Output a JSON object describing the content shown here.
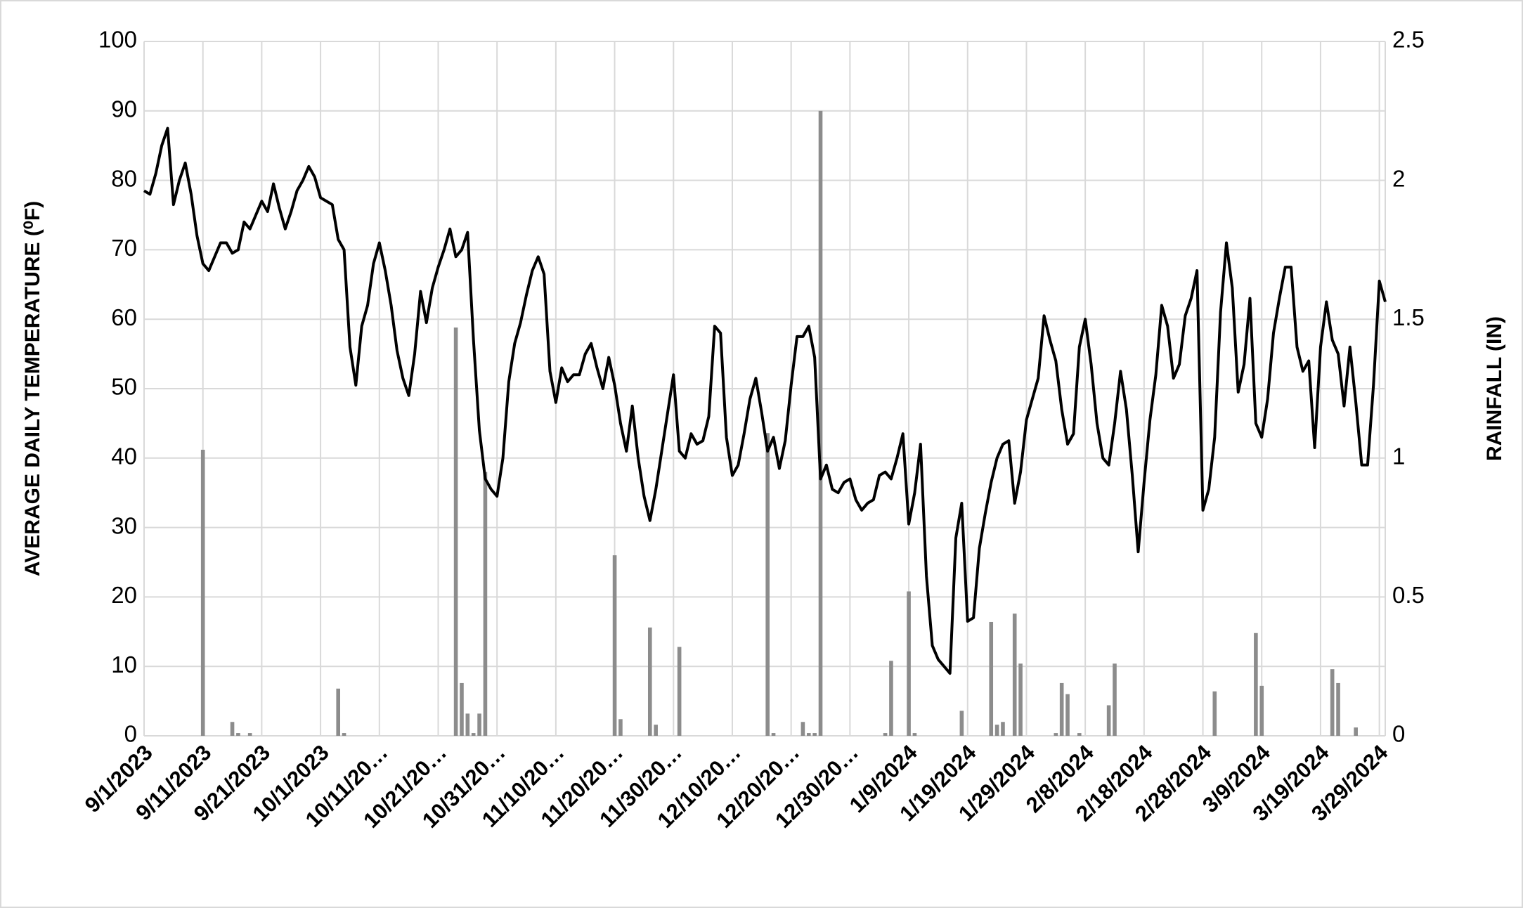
{
  "chart_data": {
    "type": "combo",
    "ylabel": "AVERAGE DAILY TEMPERATURE (⁰F)",
    "y2label": "RAINFALL (IN)",
    "ylim": [
      0,
      100
    ],
    "yticks": [
      0,
      10,
      20,
      30,
      40,
      50,
      60,
      70,
      80,
      90,
      100
    ],
    "y2lim": [
      0,
      2.5
    ],
    "y2ticks": [
      0,
      0.5,
      1,
      1.5,
      2,
      2.5
    ],
    "grid": true,
    "categories": [
      "9/1/2023",
      null,
      null,
      null,
      null,
      null,
      null,
      null,
      null,
      null,
      "9/11/2023",
      null,
      null,
      null,
      null,
      null,
      null,
      null,
      null,
      null,
      "9/21/2023",
      null,
      null,
      null,
      null,
      null,
      null,
      null,
      null,
      null,
      "10/1/2023",
      null,
      null,
      null,
      null,
      null,
      null,
      null,
      null,
      null,
      "10/11/20…",
      null,
      null,
      null,
      null,
      null,
      null,
      null,
      null,
      null,
      "10/21/20…",
      null,
      null,
      null,
      null,
      null,
      null,
      null,
      null,
      null,
      "10/31/20…",
      null,
      null,
      null,
      null,
      null,
      null,
      null,
      null,
      null,
      "11/10/20…",
      null,
      null,
      null,
      null,
      null,
      null,
      null,
      null,
      null,
      "11/20/20…",
      null,
      null,
      null,
      null,
      null,
      null,
      null,
      null,
      null,
      "11/30/20…",
      null,
      null,
      null,
      null,
      null,
      null,
      null,
      null,
      null,
      "12/10/20…",
      null,
      null,
      null,
      null,
      null,
      null,
      null,
      null,
      null,
      "12/20/20…",
      null,
      null,
      null,
      null,
      null,
      null,
      null,
      null,
      null,
      "12/30/20…",
      null,
      null,
      null,
      null,
      null,
      null,
      null,
      null,
      null,
      "1/9/2024",
      null,
      null,
      null,
      null,
      null,
      null,
      null,
      null,
      null,
      "1/19/2024",
      null,
      null,
      null,
      null,
      null,
      null,
      null,
      null,
      null,
      "1/29/2024",
      null,
      null,
      null,
      null,
      null,
      null,
      null,
      null,
      null,
      "2/8/2024",
      null,
      null,
      null,
      null,
      null,
      null,
      null,
      null,
      null,
      "2/18/2024",
      null,
      null,
      null,
      null,
      null,
      null,
      null,
      null,
      null,
      "2/28/2024",
      null,
      null,
      null,
      null,
      null,
      null,
      null,
      null,
      null,
      "3/9/2024",
      null,
      null,
      null,
      null,
      null,
      null,
      null,
      null,
      null,
      "3/19/2024",
      null,
      null,
      null,
      null,
      null,
      null,
      null,
      null,
      null,
      "3/29/2024",
      null
    ],
    "series": [
      {
        "type": "bar",
        "axis": "y2",
        "color": "#8c8c8c",
        "values": [
          0,
          0,
          0,
          0,
          0,
          0,
          0,
          0,
          0,
          0,
          1.03,
          0,
          0,
          0,
          0,
          0.05,
          0.01,
          0,
          0.01,
          0,
          0,
          0,
          0,
          0,
          0,
          0,
          0,
          0,
          0,
          0,
          0,
          0,
          0,
          0.17,
          0.01,
          0,
          0,
          0,
          0,
          0,
          0,
          0,
          0,
          0,
          0,
          0,
          0,
          0,
          0,
          0,
          0,
          0,
          0,
          1.47,
          0.19,
          0.08,
          0.01,
          0.08,
          0.95,
          0,
          0,
          0,
          0,
          0,
          0,
          0,
          0,
          0,
          0,
          0,
          0,
          0,
          0,
          0,
          0,
          0,
          0,
          0,
          0,
          0,
          0.65,
          0.06,
          0,
          0,
          0,
          0,
          0.39,
          0.04,
          0,
          0,
          0,
          0.32,
          0,
          0,
          0,
          0,
          0,
          0,
          0,
          0,
          0,
          0,
          0,
          0,
          0,
          0,
          1.09,
          0.01,
          0,
          0,
          0,
          0,
          0.05,
          0.01,
          0.01,
          2.25,
          0,
          0,
          0,
          0,
          0,
          0,
          0,
          0,
          0,
          0,
          0.01,
          0.27,
          0,
          0,
          0.52,
          0.01,
          0,
          0,
          0,
          0,
          0,
          0,
          0,
          0.09,
          0,
          0,
          0,
          0,
          0.41,
          0.04,
          0.05,
          0,
          0.44,
          0.26,
          0,
          0,
          0,
          0,
          0,
          0.01,
          0.19,
          0.15,
          0,
          0.01,
          0,
          0,
          0,
          0,
          0.11,
          0.26,
          0,
          0,
          0,
          0,
          0,
          0,
          0,
          0,
          0,
          0,
          0,
          0,
          0,
          0,
          0,
          0,
          0.16,
          0,
          0,
          0,
          0,
          0,
          0,
          0.37,
          0.18,
          0,
          0,
          0,
          0,
          0,
          0,
          0,
          0,
          0,
          0,
          0,
          0.24,
          0.19,
          0,
          0,
          0.03,
          0,
          0,
          0,
          0,
          0
        ]
      },
      {
        "type": "line",
        "color": "#000000",
        "values": [
          78.5,
          78,
          81,
          85,
          87.5,
          76.5,
          80,
          82.5,
          78,
          72,
          68,
          67,
          69,
          71,
          71,
          69.5,
          70,
          74,
          73,
          75,
          77,
          75.5,
          79.5,
          76,
          73,
          75.5,
          78.5,
          80,
          82,
          80.5,
          77.5,
          77,
          76.5,
          71.5,
          70,
          56,
          50.5,
          59,
          62,
          68,
          71,
          67,
          62,
          55.5,
          51.5,
          49,
          55,
          64,
          59.5,
          64.5,
          67.5,
          70,
          73,
          69,
          70,
          72.5,
          57,
          44,
          37,
          35.5,
          34.5,
          40,
          51,
          56.5,
          59.5,
          63.5,
          67,
          69,
          66.5,
          52.5,
          48,
          53,
          51,
          52,
          52,
          55,
          56.5,
          53,
          50,
          54.5,
          50.5,
          45,
          41,
          47.5,
          40,
          34.5,
          31,
          35.5,
          41,
          46.5,
          52,
          41,
          40,
          43.5,
          42,
          42.5,
          46,
          59,
          58,
          43,
          37.5,
          39,
          43.5,
          48.5,
          51.5,
          46.5,
          41,
          43,
          38.5,
          42.5,
          50.5,
          57.5,
          57.5,
          59,
          54.5,
          37,
          39,
          35.5,
          35,
          36.5,
          37,
          34,
          32.5,
          33.5,
          34,
          37.5,
          38,
          37,
          40,
          43.5,
          30.5,
          35,
          42,
          23,
          13,
          11,
          10,
          9,
          28.5,
          33.5,
          16.5,
          17,
          27,
          32,
          36.5,
          40,
          42,
          42.5,
          33.5,
          38,
          45.5,
          48.5,
          51.5,
          60.5,
          57,
          54,
          47,
          42,
          43.5,
          56,
          60,
          53.5,
          45,
          40,
          39,
          45,
          52.5,
          47,
          37.5,
          26.5,
          36.5,
          45.5,
          52,
          62,
          59,
          51.5,
          53.5,
          60.5,
          63,
          67,
          32.5,
          35.5,
          43,
          61,
          71,
          64.5,
          49.5,
          53.5,
          63,
          45,
          43,
          48.5,
          58,
          63,
          67.5,
          67.5,
          56,
          52.5,
          54,
          41.5,
          56,
          62.5,
          57,
          55,
          47.5,
          56,
          48,
          39,
          39,
          50.5,
          65.5,
          62.5
        ]
      }
    ]
  }
}
